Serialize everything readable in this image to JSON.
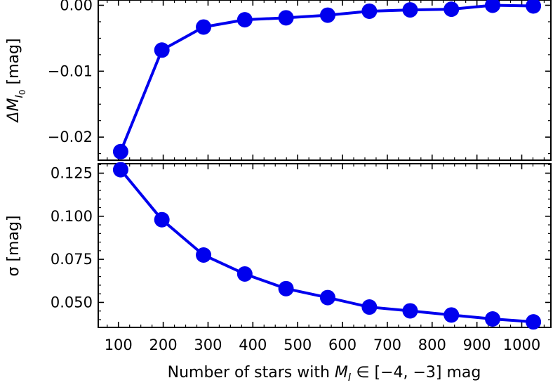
{
  "chart_data": [
    {
      "type": "line",
      "panel": "top",
      "ylabel": "ΔM",
      "ylabel_sub": "I",
      "ylabel_subsub": "0",
      "ylabel_unit": " [mag]",
      "ylim": [
        -0.0235,
        0.0008
      ],
      "xlim": [
        55,
        1065
      ],
      "yticks": [
        0.0,
        -0.01,
        -0.02
      ],
      "ytick_labels": [
        "0.00",
        "−0.01",
        "−0.02"
      ],
      "x": [
        105,
        197,
        290,
        382,
        474,
        567,
        660,
        751,
        843,
        935,
        1026
      ],
      "values": [
        -0.0222,
        -0.0068,
        -0.0033,
        -0.0022,
        -0.0019,
        -0.0015,
        -0.0009,
        -0.0007,
        -0.0006,
        0.0,
        -0.0001
      ],
      "color": "#0000ee"
    },
    {
      "type": "line",
      "panel": "bottom",
      "ylabel": "σ [mag]",
      "ylim": [
        0.0355,
        0.1305
      ],
      "xlim": [
        55,
        1065
      ],
      "yticks": [
        0.125,
        0.1,
        0.075,
        0.05
      ],
      "ytick_labels": [
        "0.125",
        "0.100",
        "0.075",
        "0.050"
      ],
      "xticks": [
        100,
        200,
        300,
        400,
        500,
        600,
        700,
        800,
        900,
        1000
      ],
      "xtick_labels": [
        "100",
        "200",
        "300",
        "400",
        "500",
        "600",
        "700",
        "800",
        "900",
        "1000"
      ],
      "xlabel_prefix": "Number of stars with ",
      "xlabel_var": "M",
      "xlabel_sub": "I",
      "xlabel_suffix": " ∈ [−4, −3] mag",
      "x": [
        105,
        197,
        290,
        382,
        474,
        567,
        660,
        751,
        843,
        935,
        1026
      ],
      "values": [
        0.127,
        0.098,
        0.0775,
        0.0665,
        0.058,
        0.0528,
        0.0473,
        0.0451,
        0.0427,
        0.0404,
        0.0387
      ],
      "color": "#0000ee"
    }
  ]
}
